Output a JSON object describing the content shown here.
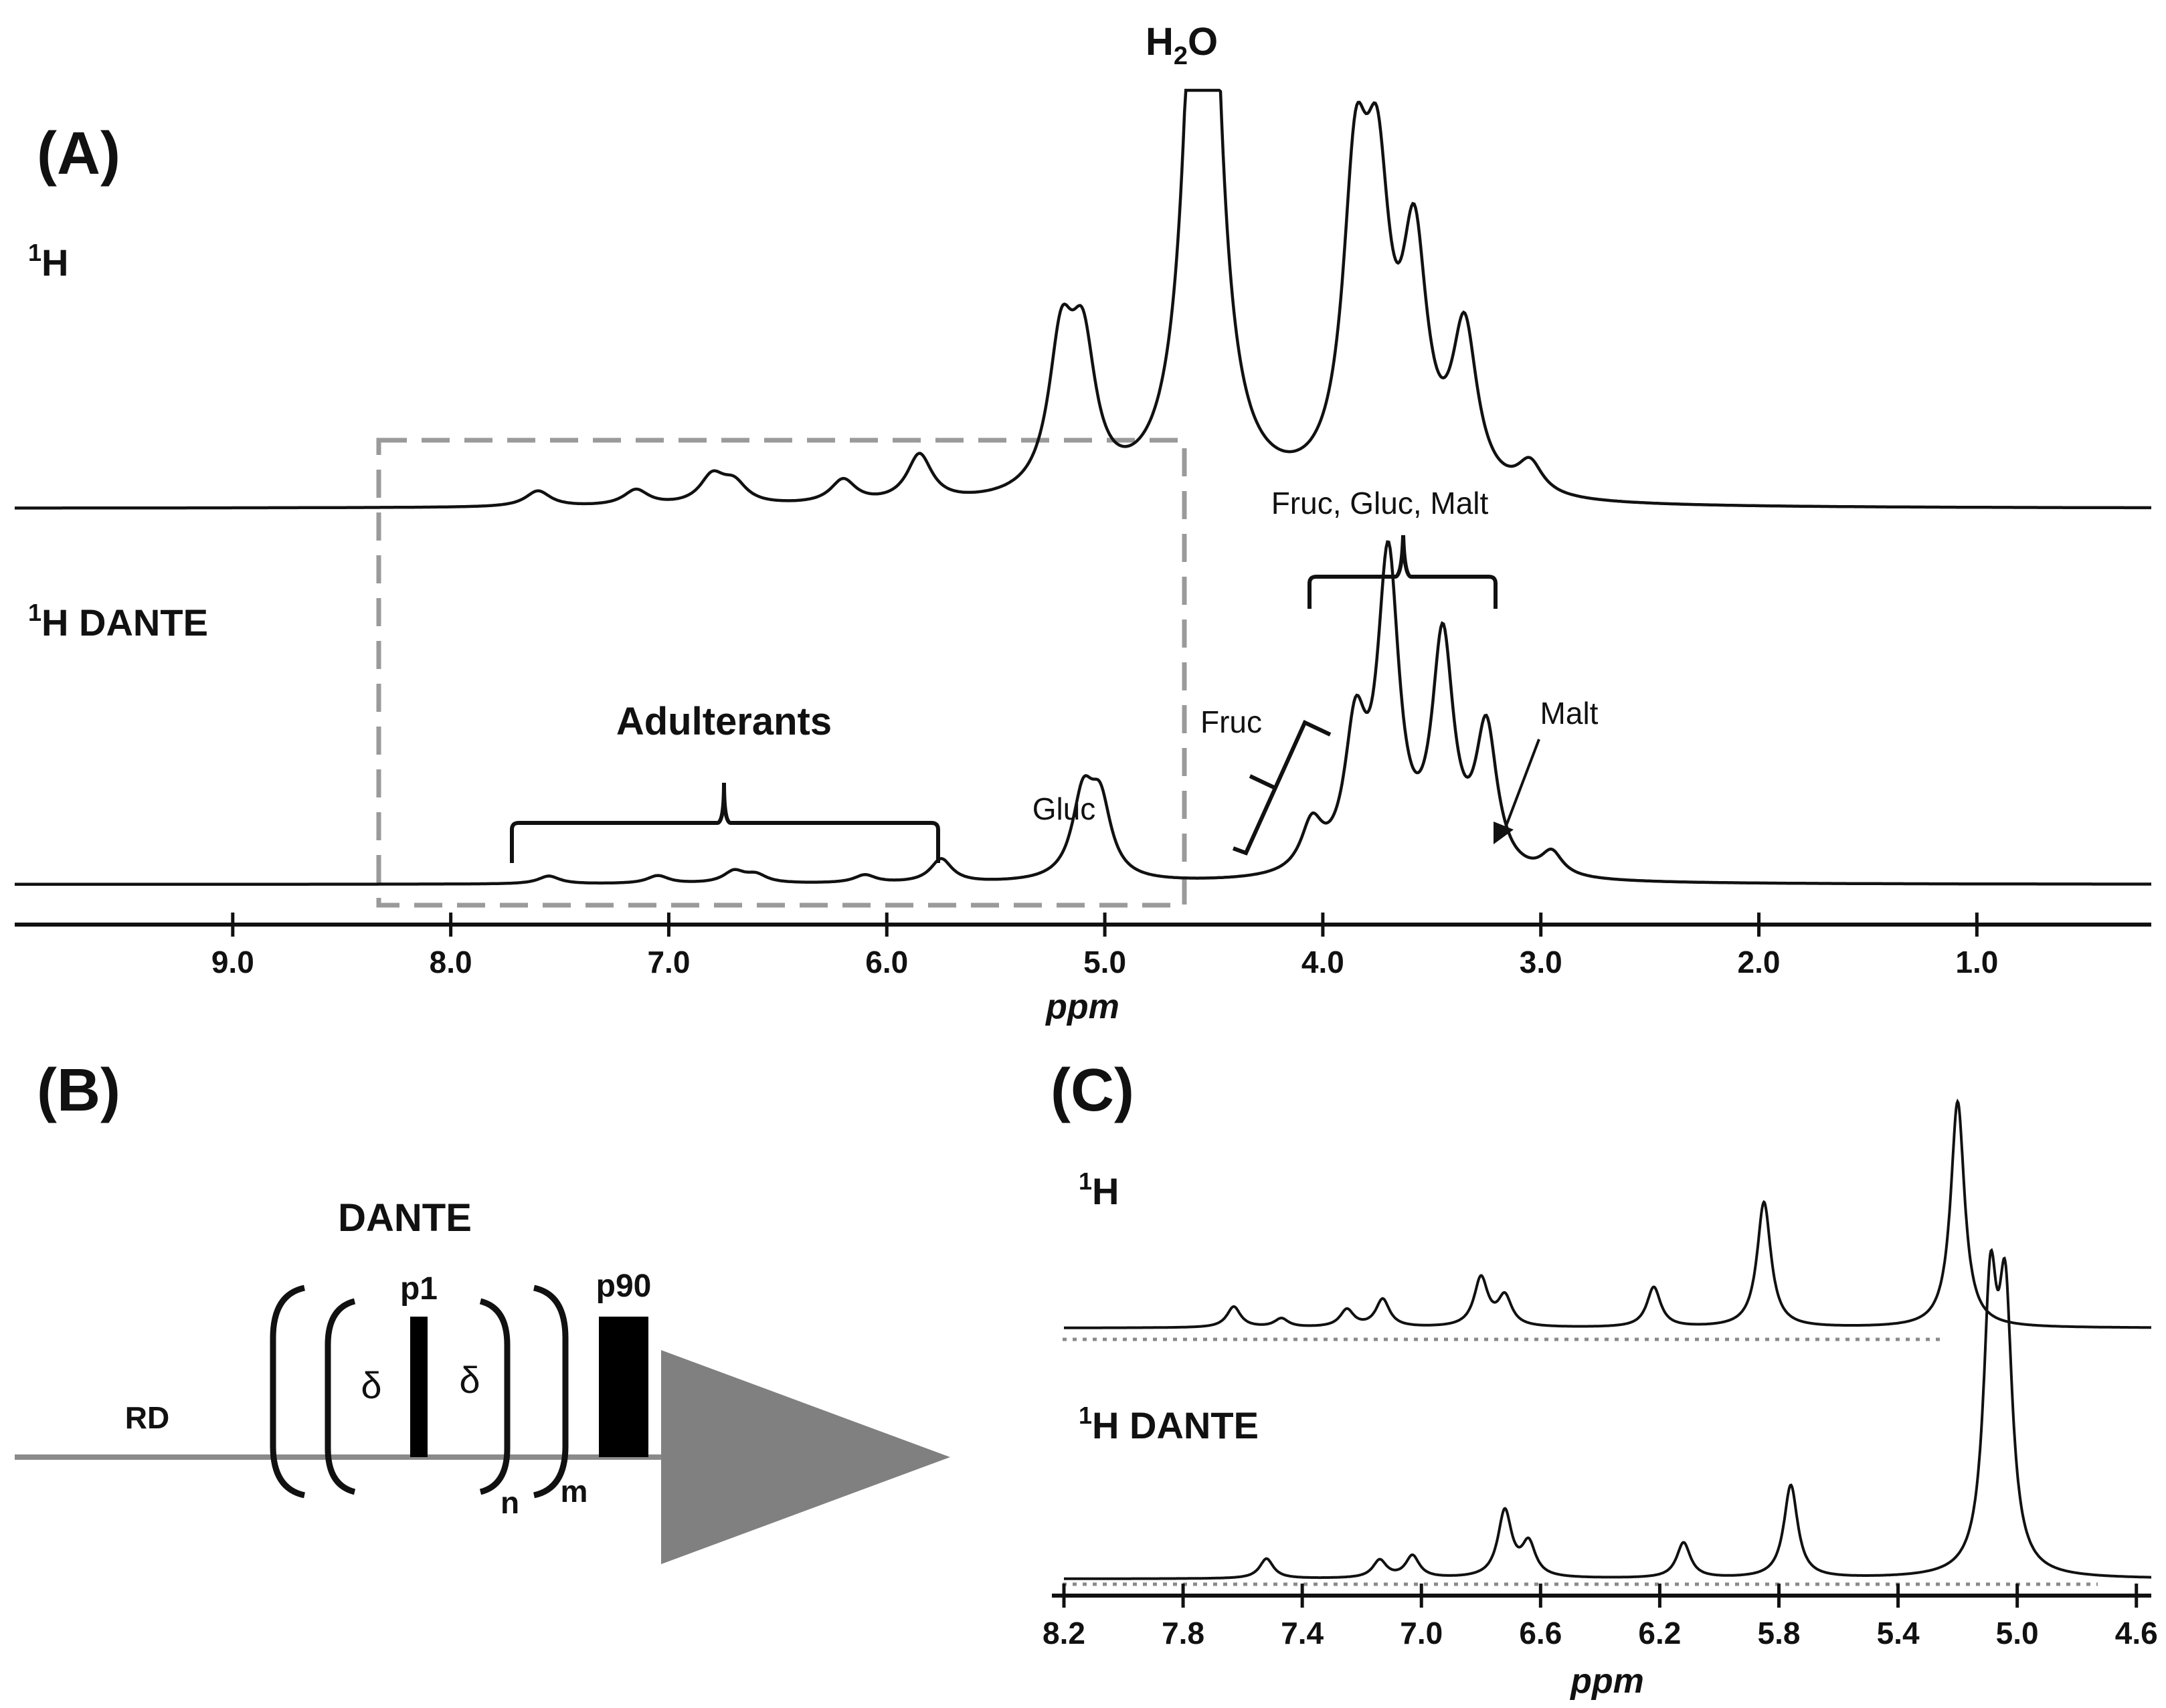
{
  "colors": {
    "trace": "#111111",
    "box": "#9a9a9a",
    "ramp": "#808080",
    "axis": "#111111"
  },
  "panel_a": {
    "label": "(A)",
    "water_label": "H",
    "water_sub": "2",
    "water_tail": "O",
    "trace1_label_sup": "1",
    "trace1_label": "H",
    "trace2_label_sup": "1",
    "trace2_label": "H DANTE",
    "annotations": {
      "adulterants": "Adulterants",
      "gluc": "Gluc",
      "fruc": "Fruc",
      "fruc_gluc_malt": "Fruc, Gluc, Malt",
      "malt": "Malt"
    }
  },
  "panel_b": {
    "label": "(B)",
    "dante": "DANTE",
    "rd": "RD",
    "p1": "p1",
    "p90": "p90",
    "delta1": "δ",
    "delta2": "δ",
    "n": "n",
    "m": "m"
  },
  "panel_c": {
    "label": "(C)",
    "trace1_label_sup": "1",
    "trace1_label": "H",
    "trace2_label_sup": "1",
    "trace2_label": "H DANTE"
  },
  "chart_data": [
    {
      "type": "line",
      "title": "(A)",
      "xlabel": "ppm",
      "ylabel": "",
      "xlim": [
        10.0,
        0.2
      ],
      "x_reversed": true,
      "xticks": [
        "9.0",
        "8.0",
        "7.0",
        "6.0",
        "5.0",
        "4.0",
        "3.0",
        "2.0",
        "1.0"
      ],
      "tick_values": [
        9.0,
        8.0,
        7.0,
        6.0,
        5.0,
        4.0,
        3.0,
        2.0,
        1.0
      ],
      "highlight_region_ppm": [
        8.3,
        4.5
      ],
      "series": [
        {
          "name": "1H",
          "peaks": [
            {
              "ppm": 7.6,
              "h": 0.2
            },
            {
              "ppm": 7.15,
              "h": 0.2
            },
            {
              "ppm": 6.8,
              "h": 0.35
            },
            {
              "ppm": 6.7,
              "h": 0.25
            },
            {
              "ppm": 6.2,
              "h": 0.3
            },
            {
              "ppm": 5.85,
              "h": 0.6
            },
            {
              "ppm": 5.2,
              "h": 1.8
            },
            {
              "ppm": 5.1,
              "h": 1.7
            },
            {
              "ppm": 4.55,
              "h": 12.0
            },
            {
              "ppm": 3.85,
              "h": 3.6
            },
            {
              "ppm": 3.75,
              "h": 3.3
            },
            {
              "ppm": 3.58,
              "h": 2.9
            },
            {
              "ppm": 3.35,
              "h": 2.0
            },
            {
              "ppm": 3.05,
              "h": 0.4
            }
          ]
        },
        {
          "name": "1H DANTE",
          "peaks": [
            {
              "ppm": 7.55,
              "h": 0.1
            },
            {
              "ppm": 7.05,
              "h": 0.1
            },
            {
              "ppm": 6.7,
              "h": 0.15
            },
            {
              "ppm": 6.6,
              "h": 0.1
            },
            {
              "ppm": 6.1,
              "h": 0.1
            },
            {
              "ppm": 5.75,
              "h": 0.3
            },
            {
              "ppm": 5.1,
              "h": 1.0
            },
            {
              "ppm": 5.02,
              "h": 0.9
            },
            {
              "ppm": 4.05,
              "h": 0.6
            },
            {
              "ppm": 3.85,
              "h": 1.7
            },
            {
              "ppm": 3.7,
              "h": 3.9
            },
            {
              "ppm": 3.45,
              "h": 2.9
            },
            {
              "ppm": 3.25,
              "h": 1.8
            },
            {
              "ppm": 2.95,
              "h": 0.3
            }
          ]
        }
      ]
    },
    {
      "type": "line",
      "title": "(C)",
      "xlabel": "ppm",
      "xlim": [
        8.2,
        4.55
      ],
      "x_reversed": true,
      "xticks": [
        "8.2",
        "7.8",
        "7.4",
        "7.0",
        "6.6",
        "6.2",
        "5.8",
        "5.4",
        "5.0",
        "4.6"
      ],
      "tick_values": [
        8.2,
        7.8,
        7.4,
        7.0,
        6.6,
        6.2,
        5.8,
        5.4,
        5.0,
        4.6
      ],
      "series": [
        {
          "name": "1H",
          "peaks": [
            {
              "ppm": 7.63,
              "h": 0.12
            },
            {
              "ppm": 7.47,
              "h": 0.05
            },
            {
              "ppm": 7.25,
              "h": 0.1
            },
            {
              "ppm": 7.13,
              "h": 0.16
            },
            {
              "ppm": 6.8,
              "h": 0.28
            },
            {
              "ppm": 6.72,
              "h": 0.17
            },
            {
              "ppm": 6.22,
              "h": 0.23
            },
            {
              "ppm": 5.85,
              "h": 0.72
            },
            {
              "ppm": 5.2,
              "h": 1.3
            }
          ]
        },
        {
          "name": "1H DANTE",
          "peaks": [
            {
              "ppm": 7.52,
              "h": 0.09
            },
            {
              "ppm": 7.14,
              "h": 0.08
            },
            {
              "ppm": 7.03,
              "h": 0.1
            },
            {
              "ppm": 6.72,
              "h": 0.3
            },
            {
              "ppm": 6.64,
              "h": 0.15
            },
            {
              "ppm": 6.12,
              "h": 0.16
            },
            {
              "ppm": 5.76,
              "h": 0.42
            },
            {
              "ppm": 5.09,
              "h": 1.2
            },
            {
              "ppm": 5.04,
              "h": 1.15
            }
          ]
        }
      ]
    }
  ]
}
